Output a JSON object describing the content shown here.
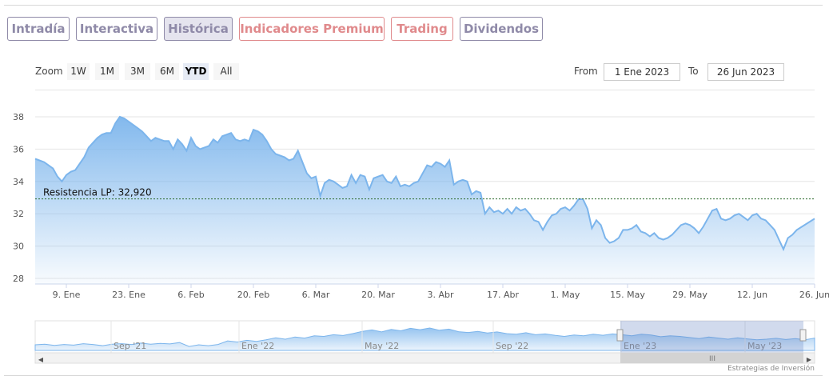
{
  "tabs": [
    {
      "label": "Intradía",
      "state": "normal"
    },
    {
      "label": "Interactiva",
      "state": "normal"
    },
    {
      "label": "Histórica",
      "state": "active"
    },
    {
      "label": "Indicadores Premium",
      "state": "red"
    },
    {
      "label": "Trading",
      "state": "red"
    },
    {
      "label": "Dividendos",
      "state": "normal"
    }
  ],
  "zoom": {
    "label": "Zoom",
    "buttons": [
      "1W",
      "1M",
      "3M",
      "6M",
      "YTD",
      "All"
    ],
    "selected": "YTD"
  },
  "range": {
    "from_label": "From",
    "from_value": "1 Ene 2023",
    "to_label": "To",
    "to_value": "26 Jun 2023"
  },
  "credit": "Estrategias de Inversión",
  "colors": {
    "line": "#7cb5ec",
    "fill_top": "#7cb5ec",
    "resistance": "#2d6a2d",
    "tab_border": "#8f8aa8",
    "tab_red": "#e08a8c"
  },
  "chart_data": {
    "type": "area",
    "title": "",
    "xlabel": "",
    "ylabel": "",
    "ylim": [
      28,
      38
    ],
    "y_ticks": [
      28,
      30,
      32,
      34,
      36,
      38
    ],
    "x_tick_labels": [
      "9. Ene",
      "23. Ene",
      "6. Feb",
      "20. Feb",
      "6. Mar",
      "20. Mar",
      "3. Abr",
      "17. Abr",
      "1. May",
      "15. May",
      "29. May",
      "12. Jun",
      "26. Jun"
    ],
    "x_ticks_day_of_year": [
      9,
      23,
      37,
      51,
      65,
      79,
      93,
      107,
      121,
      135,
      149,
      163,
      177
    ],
    "x_range_day_of_year": [
      2,
      177
    ],
    "grid": true,
    "resistance": {
      "label": "Resistencia LP: 32,920",
      "value": 32.92
    },
    "series": [
      {
        "values": [
          [
            2,
            35.4
          ],
          [
            4,
            35.2
          ],
          [
            6,
            34.8
          ],
          [
            7,
            34.3
          ],
          [
            8,
            34.0
          ],
          [
            9,
            34.4
          ],
          [
            10,
            34.6
          ],
          [
            11,
            34.7
          ],
          [
            12,
            35.1
          ],
          [
            13,
            35.5
          ],
          [
            14,
            36.1
          ],
          [
            15,
            36.4
          ],
          [
            16,
            36.7
          ],
          [
            17,
            36.9
          ],
          [
            18,
            37.0
          ],
          [
            19,
            37.0
          ],
          [
            20,
            37.6
          ],
          [
            21,
            38.0
          ],
          [
            22,
            37.9
          ],
          [
            23,
            37.7
          ],
          [
            24,
            37.5
          ],
          [
            25,
            37.3
          ],
          [
            26,
            37.1
          ],
          [
            27,
            36.8
          ],
          [
            28,
            36.5
          ],
          [
            29,
            36.7
          ],
          [
            30,
            36.6
          ],
          [
            31,
            36.5
          ],
          [
            32,
            36.5
          ],
          [
            33,
            36.0
          ],
          [
            34,
            36.6
          ],
          [
            35,
            36.3
          ],
          [
            36,
            35.9
          ],
          [
            37,
            36.7
          ],
          [
            38,
            36.2
          ],
          [
            39,
            36.0
          ],
          [
            40,
            36.1
          ],
          [
            41,
            36.2
          ],
          [
            42,
            36.6
          ],
          [
            43,
            36.4
          ],
          [
            44,
            36.8
          ],
          [
            45,
            36.9
          ],
          [
            46,
            37.0
          ],
          [
            47,
            36.6
          ],
          [
            48,
            36.5
          ],
          [
            49,
            36.6
          ],
          [
            50,
            36.5
          ],
          [
            51,
            37.2
          ],
          [
            52,
            37.1
          ],
          [
            53,
            36.9
          ],
          [
            54,
            36.5
          ],
          [
            55,
            36.0
          ],
          [
            56,
            35.7
          ],
          [
            57,
            35.6
          ],
          [
            58,
            35.5
          ],
          [
            59,
            35.3
          ],
          [
            60,
            35.4
          ],
          [
            61,
            35.9
          ],
          [
            62,
            35.2
          ],
          [
            63,
            34.5
          ],
          [
            64,
            34.2
          ],
          [
            65,
            34.3
          ],
          [
            66,
            33.1
          ],
          [
            67,
            33.9
          ],
          [
            68,
            34.1
          ],
          [
            69,
            34.0
          ],
          [
            70,
            33.8
          ],
          [
            71,
            33.6
          ],
          [
            72,
            33.7
          ],
          [
            73,
            34.4
          ],
          [
            74,
            33.9
          ],
          [
            75,
            34.4
          ],
          [
            76,
            34.3
          ],
          [
            77,
            33.5
          ],
          [
            78,
            34.2
          ],
          [
            79,
            34.3
          ],
          [
            80,
            34.4
          ],
          [
            81,
            34.0
          ],
          [
            82,
            33.9
          ],
          [
            83,
            34.3
          ],
          [
            84,
            33.7
          ],
          [
            85,
            33.8
          ],
          [
            86,
            33.7
          ],
          [
            87,
            33.9
          ],
          [
            88,
            34.0
          ],
          [
            89,
            34.5
          ],
          [
            90,
            35.0
          ],
          [
            91,
            34.9
          ],
          [
            92,
            35.2
          ],
          [
            93,
            35.1
          ],
          [
            94,
            34.9
          ],
          [
            95,
            35.3
          ],
          [
            96,
            33.8
          ],
          [
            97,
            34.0
          ],
          [
            98,
            34.1
          ],
          [
            99,
            34.0
          ],
          [
            100,
            33.2
          ],
          [
            101,
            33.4
          ],
          [
            102,
            33.3
          ],
          [
            103,
            32.0
          ],
          [
            104,
            32.4
          ],
          [
            105,
            32.1
          ],
          [
            106,
            32.2
          ],
          [
            107,
            32.0
          ],
          [
            108,
            32.3
          ],
          [
            109,
            32.0
          ],
          [
            110,
            32.4
          ],
          [
            111,
            32.2
          ],
          [
            112,
            32.3
          ],
          [
            113,
            32.0
          ],
          [
            114,
            31.6
          ],
          [
            115,
            31.5
          ],
          [
            116,
            31.0
          ],
          [
            117,
            31.5
          ],
          [
            118,
            31.9
          ],
          [
            119,
            32.0
          ],
          [
            120,
            32.3
          ],
          [
            121,
            32.4
          ],
          [
            122,
            32.2
          ],
          [
            123,
            32.5
          ],
          [
            124,
            32.9
          ],
          [
            125,
            32.9
          ],
          [
            126,
            32.3
          ],
          [
            127,
            31.1
          ],
          [
            128,
            31.6
          ],
          [
            129,
            31.3
          ],
          [
            130,
            30.5
          ],
          [
            131,
            30.2
          ],
          [
            132,
            30.3
          ],
          [
            133,
            30.5
          ],
          [
            134,
            31.0
          ],
          [
            135,
            31.0
          ],
          [
            136,
            31.1
          ],
          [
            137,
            31.3
          ],
          [
            138,
            30.9
          ],
          [
            139,
            30.8
          ],
          [
            140,
            30.6
          ],
          [
            141,
            30.8
          ],
          [
            142,
            30.5
          ],
          [
            143,
            30.4
          ],
          [
            144,
            30.5
          ],
          [
            145,
            30.7
          ],
          [
            146,
            31.0
          ],
          [
            147,
            31.3
          ],
          [
            148,
            31.4
          ],
          [
            149,
            31.3
          ],
          [
            150,
            31.1
          ],
          [
            151,
            30.8
          ],
          [
            152,
            31.2
          ],
          [
            153,
            31.7
          ],
          [
            154,
            32.2
          ],
          [
            155,
            32.3
          ],
          [
            156,
            31.7
          ],
          [
            157,
            31.6
          ],
          [
            158,
            31.7
          ],
          [
            159,
            31.9
          ],
          [
            160,
            32.0
          ],
          [
            161,
            31.8
          ],
          [
            162,
            31.6
          ],
          [
            163,
            31.9
          ],
          [
            164,
            32.0
          ],
          [
            165,
            31.7
          ],
          [
            166,
            31.6
          ],
          [
            167,
            31.3
          ],
          [
            168,
            31.0
          ],
          [
            169,
            30.4
          ],
          [
            170,
            29.8
          ],
          [
            171,
            30.5
          ],
          [
            172,
            30.7
          ],
          [
            173,
            31.0
          ]
        ]
      }
    ]
  },
  "navigator": {
    "labels": [
      "Sep '21",
      "Ene '22",
      "May '22",
      "Sep '22",
      "Ene '23",
      "May '23"
    ],
    "values": [
      30,
      30.2,
      29.8,
      30.1,
      29.9,
      30.4,
      30.1,
      29.7,
      30.2,
      30.4,
      30.1,
      30.6,
      30.2,
      30.5,
      30.3,
      30.8,
      29.4,
      30.0,
      29.7,
      30.1,
      31.4,
      31.0,
      31.6,
      31.2,
      31.8,
      32.5,
      32.0,
      32.8,
      32.4,
      33.2,
      33.0,
      33.6,
      33.3,
      34.0,
      34.8,
      35.3,
      34.6,
      35.5,
      35.0,
      35.9,
      35.4,
      36.0,
      35.2,
      35.6,
      34.7,
      34.4,
      34.8,
      34.2,
      34.6,
      34.0,
      33.8,
      34.3,
      33.6,
      33.9,
      33.4,
      33.0,
      33.5,
      33.2,
      33.8,
      33.4,
      33.9,
      33.6,
      33.2,
      33.8,
      33.5,
      32.9,
      33.2,
      33.0,
      32.6,
      32.2,
      32.8,
      32.4,
      32.0,
      32.5,
      32.1,
      31.8,
      32.0,
      32.3,
      31.9,
      32.2,
      31.8,
      32.4
    ]
  }
}
